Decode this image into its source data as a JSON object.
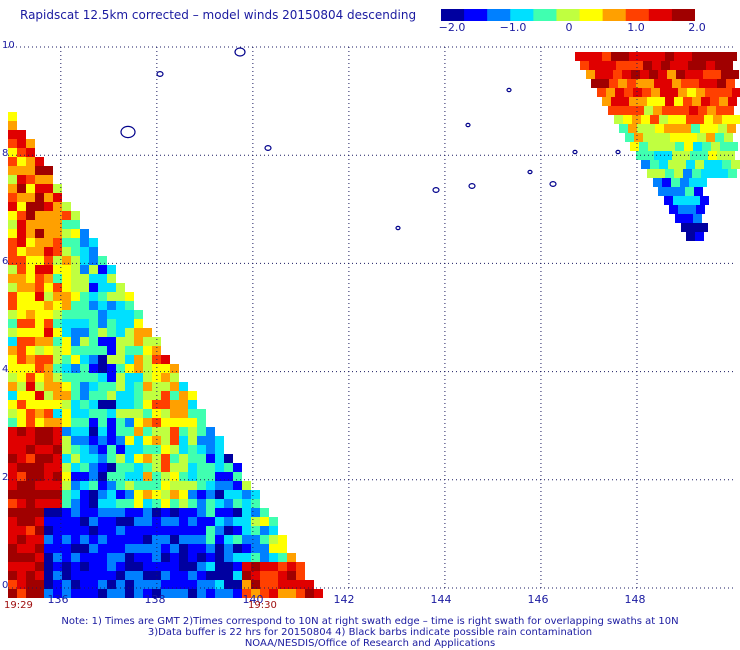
{
  "title": "Rapidscat 12.5km corrected – model winds 20150804 descending",
  "colorbar": {
    "ticks": [
      "−2.0",
      "−1.0",
      "0",
      "1.0",
      "2.0"
    ],
    "tick_values": [
      -2.0,
      -1.0,
      0,
      1.0,
      2.0
    ],
    "colors": [
      "#0000a0",
      "#0000ff",
      "#0080ff",
      "#00e0ff",
      "#40ffb0",
      "#c0ff40",
      "#ffff00",
      "#ffa000",
      "#ff4000",
      "#e00000",
      "#a00000"
    ]
  },
  "axes": {
    "lat_labels": [
      "10",
      "8",
      "6",
      "4",
      "2",
      "0"
    ],
    "lat_values": [
      10,
      8,
      6,
      4,
      2,
      0
    ],
    "lon_labels": [
      "136",
      "138",
      "140",
      "142",
      "144",
      "146",
      "148"
    ],
    "lon_values": [
      136,
      138,
      140,
      142,
      144,
      146,
      148
    ],
    "lon_range": [
      134.9,
      150
    ],
    "lat_range": [
      0,
      10
    ],
    "grid": "dotted"
  },
  "swath_times": {
    "left": "19:29",
    "right": "19:30"
  },
  "notes": [
    "Note: 1) Times are GMT 2)Times correspond to 10N at right swath edge – time is right swath for overlapping swaths at 10N",
    "3)Data buffer is 22 hrs for 20150804 4) Black barbs indicate possible rain contamination",
    "NOAA/NESDIS/Office of Research and Applications"
  ]
}
